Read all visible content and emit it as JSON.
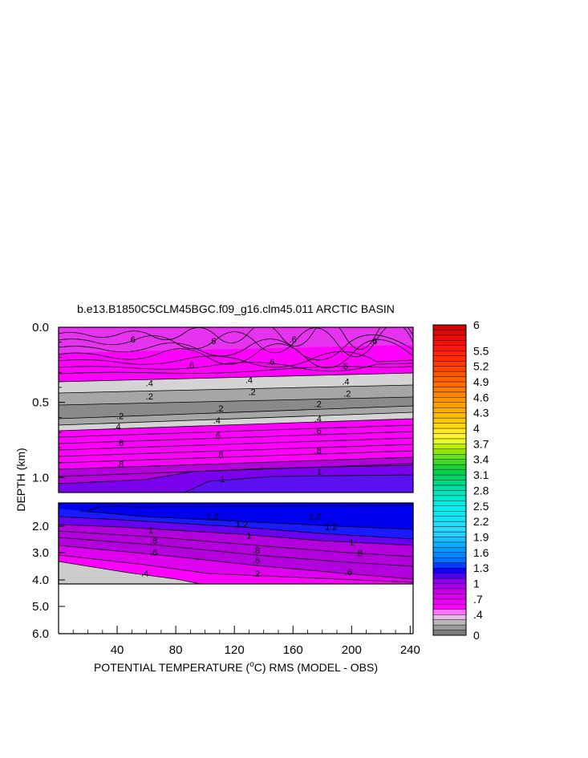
{
  "chart_data": {
    "type": "heatmap",
    "title": "b.e13.B1850C5CLM45BGC.f09_g16.clm45.011 ARCTIC BASIN",
    "xlabel_parts": [
      "POTENTIAL TEMPERATURE (",
      "o",
      "C) RMS (MODEL - OBS)"
    ],
    "ylabel": "DEPTH (km)",
    "x_ticks": [
      "40",
      "80",
      "120",
      "160",
      "200",
      "240"
    ],
    "x_tick_values": [
      40,
      80,
      120,
      160,
      200,
      240
    ],
    "xlim": [
      0,
      242
    ],
    "upper_panel": {
      "depth_range_km": [
        0.0,
        1.1
      ],
      "y_ticks": [
        "0.0",
        "0.5",
        "1.0"
      ],
      "y_tick_values": [
        0.0,
        0.5,
        1.0
      ]
    },
    "lower_panel": {
      "y_ticks": [
        "2.0",
        "3.0",
        "4.0",
        "5.0",
        "6.0"
      ],
      "y_tick_values": [
        2.0,
        3.0,
        4.0,
        5.0,
        6.0
      ],
      "data_bottom_km": 4.1
    },
    "colorbar": {
      "labels": [
        "6",
        "5.5",
        "5.2",
        "4.9",
        "4.6",
        "4.3",
        "4",
        "3.7",
        "3.4",
        "3.1",
        "2.8",
        "2.5",
        "2.2",
        "1.9",
        "1.6",
        "1.3",
        "1",
        ".7",
        ".4",
        "0"
      ],
      "label_values": [
        6,
        5.5,
        5.2,
        4.9,
        4.6,
        4.3,
        4,
        3.7,
        3.4,
        3.1,
        2.8,
        2.5,
        2.2,
        1.9,
        1.6,
        1.3,
        1,
        0.7,
        0.4,
        0
      ],
      "range": [
        0,
        6
      ]
    },
    "contour_labels_upper": [
      {
        "text": ".6",
        "x": 50,
        "d": 0.08
      },
      {
        "text": ".6",
        "x": 105,
        "d": 0.09
      },
      {
        "text": ".6",
        "x": 160,
        "d": 0.08
      },
      {
        "text": ".6",
        "x": 215,
        "d": 0.09
      },
      {
        "text": ".6",
        "x": 90,
        "d": 0.25
      },
      {
        "text": ".6",
        "x": 145,
        "d": 0.23
      },
      {
        "text": ".6",
        "x": 195,
        "d": 0.26
      },
      {
        "text": ".4",
        "x": 62,
        "d": 0.37
      },
      {
        "text": ".4",
        "x": 130,
        "d": 0.35
      },
      {
        "text": ".4",
        "x": 196,
        "d": 0.36
      },
      {
        "text": ".2",
        "x": 62,
        "d": 0.46
      },
      {
        "text": ".2",
        "x": 132,
        "d": 0.43
      },
      {
        "text": ".2",
        "x": 197,
        "d": 0.44
      },
      {
        "text": ".2",
        "x": 42,
        "d": 0.59
      },
      {
        "text": ".2",
        "x": 110,
        "d": 0.54
      },
      {
        "text": ".2",
        "x": 177,
        "d": 0.51
      },
      {
        "text": ".4",
        "x": 40,
        "d": 0.66
      },
      {
        "text": ".4",
        "x": 108,
        "d": 0.62
      },
      {
        "text": ".4",
        "x": 177,
        "d": 0.61
      },
      {
        "text": ".6",
        "x": 42,
        "d": 0.77
      },
      {
        "text": ".6",
        "x": 108,
        "d": 0.72
      },
      {
        "text": ".6",
        "x": 177,
        "d": 0.69
      },
      {
        "text": ".8",
        "x": 42,
        "d": 0.91
      },
      {
        "text": ".8",
        "x": 110,
        "d": 0.85
      },
      {
        "text": ".8",
        "x": 177,
        "d": 0.82
      },
      {
        "text": "1",
        "x": 112,
        "d": 1.01
      },
      {
        "text": "1",
        "x": 178,
        "d": 0.96
      }
    ],
    "contour_labels_lower": [
      {
        "text": "1.2",
        "x": 105,
        "d": 1.63
      },
      {
        "text": "1.2",
        "x": 125,
        "d": 1.93
      },
      {
        "text": "1.2",
        "x": 175,
        "d": 1.62
      },
      {
        "text": "1.2",
        "x": 186,
        "d": 2.01
      },
      {
        "text": "1",
        "x": 63,
        "d": 2.15
      },
      {
        "text": "1",
        "x": 130,
        "d": 2.35
      },
      {
        "text": "1",
        "x": 200,
        "d": 2.61
      },
      {
        "text": ".8",
        "x": 65,
        "d": 2.55
      },
      {
        "text": ".8",
        "x": 135,
        "d": 2.91
      },
      {
        "text": ".8",
        "x": 205,
        "d": 3.02
      },
      {
        "text": ".6",
        "x": 65,
        "d": 2.98
      },
      {
        "text": ".6",
        "x": 135,
        "d": 3.28
      },
      {
        "text": ".6",
        "x": 198,
        "d": 3.7
      },
      {
        "text": ".4",
        "x": 59,
        "d": 3.75
      },
      {
        "text": ".2",
        "x": 135,
        "d": 3.76
      }
    ]
  }
}
